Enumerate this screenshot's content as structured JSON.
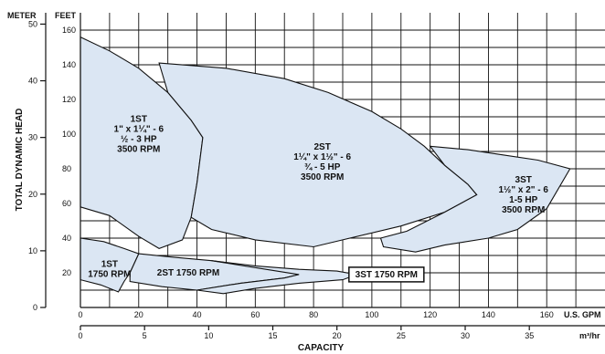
{
  "chart_data": {
    "type": "area",
    "title": "",
    "axes": {
      "meter_label": "METER",
      "feet_label": "FEET",
      "ylabel": "TOTAL DYNAMIC HEAD",
      "xlabel": "CAPACITY",
      "gpm_label": "U.S. GPM",
      "m3hr_label": "m³/hr",
      "gpm_range": [
        0,
        180
      ],
      "m3hr_range": [
        0,
        40.9
      ],
      "feet_range": [
        0,
        170
      ],
      "meter_range": [
        0,
        52
      ],
      "gpm_ticks": [
        "0",
        "20",
        "40",
        "60",
        "80",
        "100",
        "120",
        "140",
        "160"
      ],
      "m3hr_ticks": [
        "0",
        "5",
        "10",
        "15",
        "20",
        "25",
        "30",
        "35"
      ],
      "feet_ticks": [
        "20",
        "40",
        "60",
        "80",
        "100",
        "120",
        "140",
        "160"
      ],
      "meter_ticks": [
        "0",
        "10",
        "20",
        "30",
        "40",
        "50"
      ],
      "grid": true
    },
    "series": [
      {
        "name": "1ST 3500 RPM",
        "lines": [
          "1ST",
          "1\" x 1¼\" - 6",
          "½ - 3 HP",
          "3500 RPM"
        ],
        "label_at": [
          20,
          100
        ],
        "polygon": [
          [
            0,
            156
          ],
          [
            10,
            148
          ],
          [
            20,
            138
          ],
          [
            30,
            124
          ],
          [
            38,
            108
          ],
          [
            42,
            98
          ],
          [
            40,
            72
          ],
          [
            38,
            52
          ],
          [
            35,
            39
          ],
          [
            27,
            34
          ],
          [
            20,
            41
          ],
          [
            10,
            53
          ],
          [
            0,
            58
          ]
        ]
      },
      {
        "name": "2ST 3500 RPM",
        "lines": [
          "2ST",
          "1¼\" x 1½\" - 6",
          "¾ - 5 HP",
          "3500 RPM"
        ],
        "label_at": [
          83,
          84
        ],
        "polygon": [
          [
            27,
            141
          ],
          [
            50,
            138
          ],
          [
            70,
            132
          ],
          [
            85,
            124
          ],
          [
            100,
            113
          ],
          [
            110,
            103
          ],
          [
            118,
            93
          ],
          [
            125,
            82
          ],
          [
            133,
            71
          ],
          [
            136,
            65
          ],
          [
            125,
            55
          ],
          [
            110,
            47
          ],
          [
            90,
            39
          ],
          [
            80,
            35
          ],
          [
            60,
            39
          ],
          [
            45,
            45
          ],
          [
            38,
            52
          ],
          [
            40,
            72
          ],
          [
            42,
            98
          ],
          [
            38,
            108
          ],
          [
            30,
            124
          ]
        ]
      },
      {
        "name": "3ST 3500 RPM",
        "lines": [
          "3ST",
          "1½\" x 2\" - 6",
          "1-5 HP",
          "3500 RPM"
        ],
        "label_at": [
          152,
          65
        ],
        "polygon": [
          [
            120,
            93
          ],
          [
            133,
            91
          ],
          [
            145,
            88
          ],
          [
            157,
            85
          ],
          [
            168,
            80
          ],
          [
            160,
            57
          ],
          [
            150,
            45
          ],
          [
            140,
            40
          ],
          [
            125,
            36
          ],
          [
            115,
            32
          ],
          [
            104,
            35
          ],
          [
            103,
            40
          ],
          [
            112,
            44
          ],
          [
            125,
            55
          ],
          [
            136,
            65
          ],
          [
            133,
            71
          ],
          [
            125,
            82
          ]
        ]
      },
      {
        "name": "1ST 1750 RPM",
        "lines": [
          "1ST",
          "1750 RPM"
        ],
        "label_at": [
          10,
          22
        ],
        "polygon": [
          [
            0,
            40
          ],
          [
            8,
            38
          ],
          [
            15,
            34
          ],
          [
            20,
            31
          ],
          [
            17,
            20
          ],
          [
            15,
            15
          ],
          [
            13,
            9
          ],
          [
            7,
            13
          ],
          [
            0,
            16
          ]
        ]
      },
      {
        "name": "2ST 1750 RPM",
        "lines": [
          "2ST 1750 RPM"
        ],
        "label_at": [
          37,
          20
        ],
        "polygon": [
          [
            20,
            31
          ],
          [
            32,
            29
          ],
          [
            45,
            27
          ],
          [
            58,
            24
          ],
          [
            70,
            21
          ],
          [
            75,
            19
          ],
          [
            70,
            17
          ],
          [
            55,
            14
          ],
          [
            40,
            10
          ],
          [
            28,
            12
          ],
          [
            17,
            15
          ],
          [
            17,
            20
          ]
        ]
      },
      {
        "name": "3ST 1750 RPM",
        "lines": [
          "3ST 1750 RPM"
        ],
        "label_at": [
          105,
          19
        ],
        "polygon": [
          [
            45,
            27
          ],
          [
            60,
            24
          ],
          [
            75,
            22
          ],
          [
            88,
            21
          ],
          [
            95,
            19
          ],
          [
            90,
            16
          ],
          [
            75,
            14
          ],
          [
            60,
            11
          ],
          [
            49,
            8
          ],
          [
            40,
            10
          ],
          [
            55,
            14
          ],
          [
            70,
            17
          ],
          [
            75,
            19
          ]
        ]
      }
    ]
  }
}
